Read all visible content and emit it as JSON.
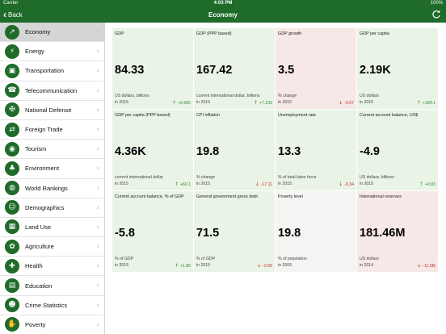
{
  "statusbar": {
    "carrier": "Carrier",
    "time": "4:03 PM",
    "battery": "100%"
  },
  "navbar": {
    "back_label": "Back",
    "title": "Economy"
  },
  "sidebar": {
    "items": [
      {
        "label": "Economy",
        "icon": "chart-icon",
        "glyph": "↗",
        "active": true
      },
      {
        "label": "Energy",
        "icon": "lightning-icon",
        "glyph": "⚡",
        "active": false
      },
      {
        "label": "Transportation",
        "icon": "bus-icon",
        "glyph": "▣",
        "active": false
      },
      {
        "label": "Telecommunication",
        "icon": "phone-icon",
        "glyph": "☎",
        "active": false
      },
      {
        "label": "National Defense",
        "icon": "tank-icon",
        "glyph": "✠",
        "active": false
      },
      {
        "label": "Foreign Trade",
        "icon": "trade-icon",
        "glyph": "⇄",
        "active": false
      },
      {
        "label": "Tourism",
        "icon": "camera-icon",
        "glyph": "◉",
        "active": false
      },
      {
        "label": "Environment",
        "icon": "tree-icon",
        "glyph": "♣",
        "active": false
      },
      {
        "label": "World Rankings",
        "icon": "globe-icon",
        "glyph": "◍",
        "active": false
      },
      {
        "label": "Demographics",
        "icon": "people-icon",
        "glyph": "☺",
        "active": false
      },
      {
        "label": "Land Use",
        "icon": "map-icon",
        "glyph": "▦",
        "active": false
      },
      {
        "label": "Agriculture",
        "icon": "plant-icon",
        "glyph": "✿",
        "active": false
      },
      {
        "label": "Health",
        "icon": "health-icon",
        "glyph": "✚",
        "active": false
      },
      {
        "label": "Education",
        "icon": "book-icon",
        "glyph": "▤",
        "active": false
      },
      {
        "label": "Crime Statistics",
        "icon": "mask-icon",
        "glyph": "☻",
        "active": false
      },
      {
        "label": "Poverty",
        "icon": "poverty-icon",
        "glyph": "✋",
        "active": false
      }
    ]
  },
  "cards": [
    {
      "name": "GDP",
      "value": "84.33",
      "unit": "US dollars, billions",
      "year": "in 2015",
      "change": "+9.565",
      "direction": "up",
      "tone": "pos"
    },
    {
      "name": "GDP (PPP based)",
      "value": "167.42",
      "unit": "current international dollar, billions",
      "year": "in 2015",
      "change": "+7.232",
      "direction": "up",
      "tone": "pos"
    },
    {
      "name": "GDP growth",
      "value": "3.5",
      "unit": "% change",
      "year": "in 2015",
      "change": "-0.07",
      "direction": "down",
      "tone": "neg"
    },
    {
      "name": "GDP per capita",
      "value": "2.19K",
      "unit": "US dollars",
      "year": "in 2015",
      "change": "+189.1",
      "direction": "up",
      "tone": "pos"
    },
    {
      "name": "GDP per capita (PPP based)",
      "value": "4.36K",
      "unit": "current international dollar",
      "year": "in 2015",
      "change": "+60.1",
      "direction": "up",
      "tone": "pos"
    },
    {
      "name": "CPI inflation",
      "value": "19.8",
      "unit": "% change",
      "year": "in 2015",
      "change": "-17.11",
      "direction": "down",
      "tone": "pos"
    },
    {
      "name": "Unemployment rate",
      "value": "13.3",
      "unit": "% of total labor force",
      "year": "in 2015",
      "change": "-0.34",
      "direction": "down",
      "tone": "pos"
    },
    {
      "name": "Current account balance, US$",
      "value": "-4.9",
      "unit": "US dollars, billions",
      "year": "in 2015",
      "change": "+0.83",
      "direction": "up",
      "tone": "pos"
    },
    {
      "name": "Current account balance, % of GDP",
      "value": "-5.8",
      "unit": "% of GDP",
      "year": "in 2015",
      "change": "+1.86",
      "direction": "up",
      "tone": "pos"
    },
    {
      "name": "General government gross debt",
      "value": "71.5",
      "unit": "% of GDP",
      "year": "in 2015",
      "change": "-2.55",
      "direction": "down",
      "tone": "pos"
    },
    {
      "name": "Poverty level",
      "value": "19.8",
      "unit": "% of population",
      "year": "in 2009",
      "change": "",
      "direction": "none",
      "tone": "neutral"
    },
    {
      "name": "International reserves",
      "value": "181.46M",
      "unit": "US dollars",
      "year": "in 2014",
      "change": "-11.5M",
      "direction": "down",
      "tone": "neg"
    }
  ],
  "colors": {
    "brand_green": "#1f6b2a",
    "card_positive": "#eaf4e6",
    "card_negative": "#f7e8e8",
    "card_neutral": "#f4f4f2",
    "up": "#2f8a3a",
    "down": "#c62828"
  }
}
